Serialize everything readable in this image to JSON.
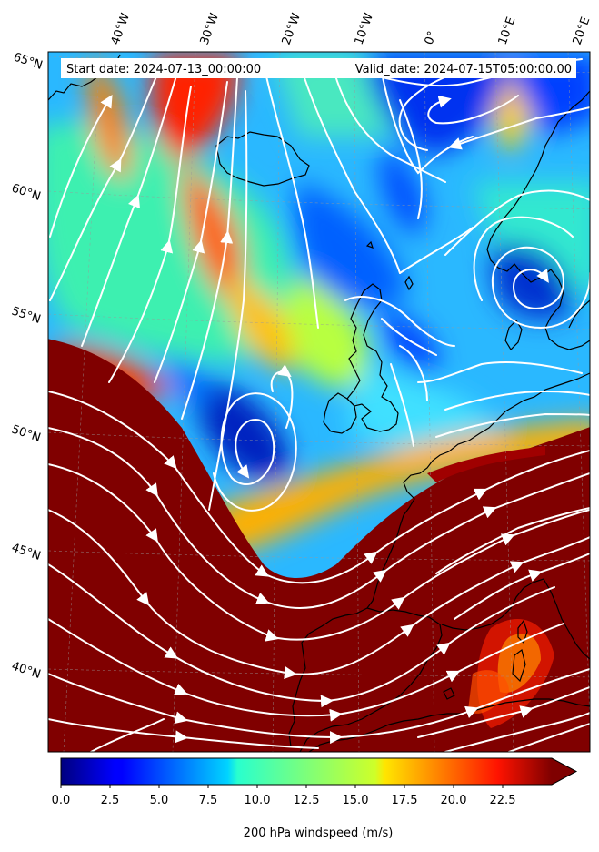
{
  "header": {
    "start_date": "Start date: 2024-07-13_00:00:00",
    "valid_date": "Valid_date: 2024-07-15T05:00:00.00"
  },
  "axes": {
    "lon_labels": [
      "40°W",
      "30°W",
      "20°W",
      "10°W",
      "0°",
      "10°E",
      "20°E"
    ],
    "lat_labels": [
      "65°N",
      "60°N",
      "55°N",
      "50°N",
      "45°N",
      "40°N"
    ]
  },
  "colorbar": {
    "label": "200 hPa windspeed (m/s)",
    "min": 0,
    "max": 25,
    "ticks": [
      "0.0",
      "2.5",
      "5.0",
      "7.5",
      "10.0",
      "12.5",
      "15.0",
      "17.5",
      "20.0",
      "22.5"
    ],
    "extend": "max",
    "colormap": "jet"
  },
  "colors": {
    "background_high": "#7f0000",
    "streamline": "#ffffff",
    "coastline": "#000000"
  }
}
